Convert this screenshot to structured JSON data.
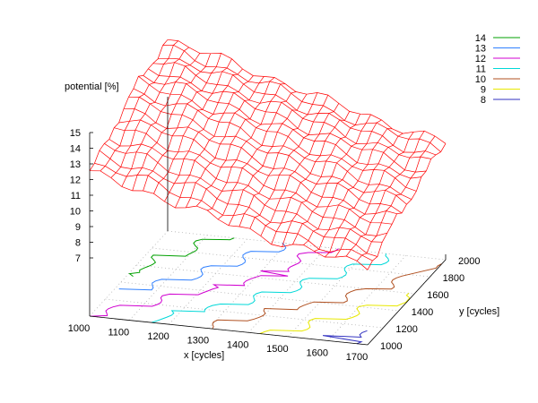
{
  "chart_data": {
    "type": "surface-3d-with-contours",
    "zlabel": "potential [%]",
    "xlabel": "x [cycles]",
    "ylabel": "y [cycles]",
    "xlim": [
      1000,
      1700
    ],
    "ylim": [
      1000,
      2000
    ],
    "zlim": [
      7,
      15
    ],
    "x_ticks": [
      "1000",
      "1100",
      "1200",
      "1300",
      "1400",
      "1500",
      "1600",
      "1700"
    ],
    "y_ticks": [
      "1000",
      "1200",
      "1400",
      "1600",
      "1800",
      "2000"
    ],
    "z_ticks": [
      "7",
      "8",
      "9",
      "10",
      "11",
      "12",
      "13",
      "14",
      "15"
    ],
    "surface_color": "#ff0000",
    "surface_approx": {
      "x": [
        1000,
        1100,
        1200,
        1300,
        1400,
        1500,
        1600,
        1700
      ],
      "y": [
        1000,
        1200,
        1400,
        1600,
        1800,
        2000
      ],
      "z": [
        [
          11.8,
          12.6,
          13.5,
          14.2,
          14.6,
          14.9
        ],
        [
          11.3,
          12.1,
          12.9,
          13.6,
          14.0,
          14.3
        ],
        [
          10.6,
          11.4,
          12.2,
          12.9,
          13.3,
          13.6
        ],
        [
          9.9,
          10.7,
          11.4,
          12.1,
          12.6,
          12.9
        ],
        [
          9.2,
          10.0,
          10.7,
          11.3,
          11.8,
          12.1
        ],
        [
          8.6,
          9.3,
          10.0,
          10.6,
          11.1,
          11.4
        ],
        [
          8.1,
          8.7,
          9.3,
          9.9,
          10.4,
          10.8
        ],
        [
          7.7,
          8.2,
          8.8,
          9.3,
          9.8,
          10.2
        ]
      ]
    },
    "legend": {
      "position": "top-right",
      "entries": [
        {
          "label": "14",
          "color": "#00a000"
        },
        {
          "label": "13",
          "color": "#3080ff"
        },
        {
          "label": "12",
          "color": "#d000d0"
        },
        {
          "label": "11",
          "color": "#00d8d8"
        },
        {
          "label": "10",
          "color": "#b05020"
        },
        {
          "label": "9",
          "color": "#e8e800"
        },
        {
          "label": "8",
          "color": "#3030c0"
        }
      ]
    }
  }
}
